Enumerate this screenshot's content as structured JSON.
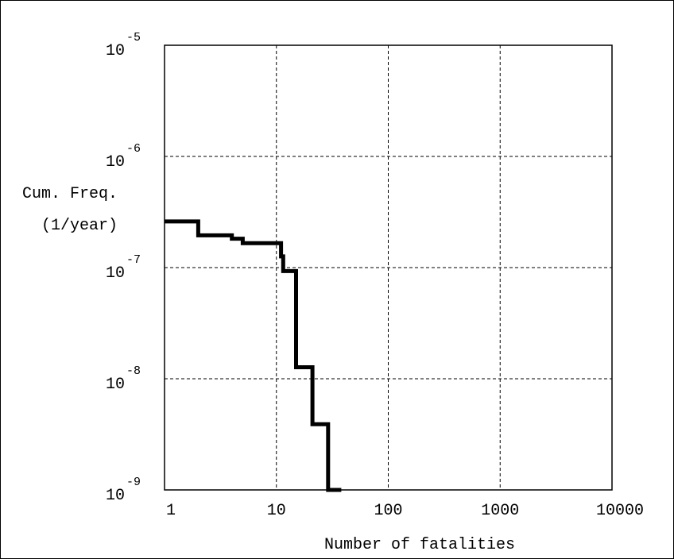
{
  "chart_data": {
    "type": "line",
    "title": "",
    "xlabel": "Number of fatalities",
    "ylabel": [
      "Cum. Freq.",
      "(1/year)"
    ],
    "xscale": "log",
    "yscale": "log",
    "xlim": [
      1,
      10000
    ],
    "ylim": [
      1e-09,
      1e-05
    ],
    "grid": true,
    "x_tick_labels": [
      "1",
      "10",
      "100",
      "1000",
      "10000"
    ],
    "y_tick_labels": [
      {
        "base": "10",
        "exp": "-5"
      },
      {
        "base": "10",
        "exp": "-6"
      },
      {
        "base": "10",
        "exp": "-7"
      },
      {
        "base": "10",
        "exp": "-8"
      },
      {
        "base": "10",
        "exp": "-9"
      }
    ],
    "series": [
      {
        "style": "step",
        "color": "#000000",
        "points": [
          [
            1,
            2.6e-07
          ],
          [
            2,
            2.6e-07
          ],
          [
            2,
            1.95e-07
          ],
          [
            4,
            1.95e-07
          ],
          [
            4,
            1.82e-07
          ],
          [
            5,
            1.82e-07
          ],
          [
            5,
            1.66e-07
          ],
          [
            11,
            1.66e-07
          ],
          [
            11,
            1.26e-07
          ],
          [
            11.5,
            1.26e-07
          ],
          [
            11.5,
            9.3e-08
          ],
          [
            15,
            9.3e-08
          ],
          [
            15,
            1.27e-08
          ],
          [
            21,
            1.27e-08
          ],
          [
            21,
            3.9e-09
          ],
          [
            29,
            3.9e-09
          ],
          [
            29,
            1e-09
          ],
          [
            38,
            1e-09
          ]
        ]
      }
    ]
  }
}
